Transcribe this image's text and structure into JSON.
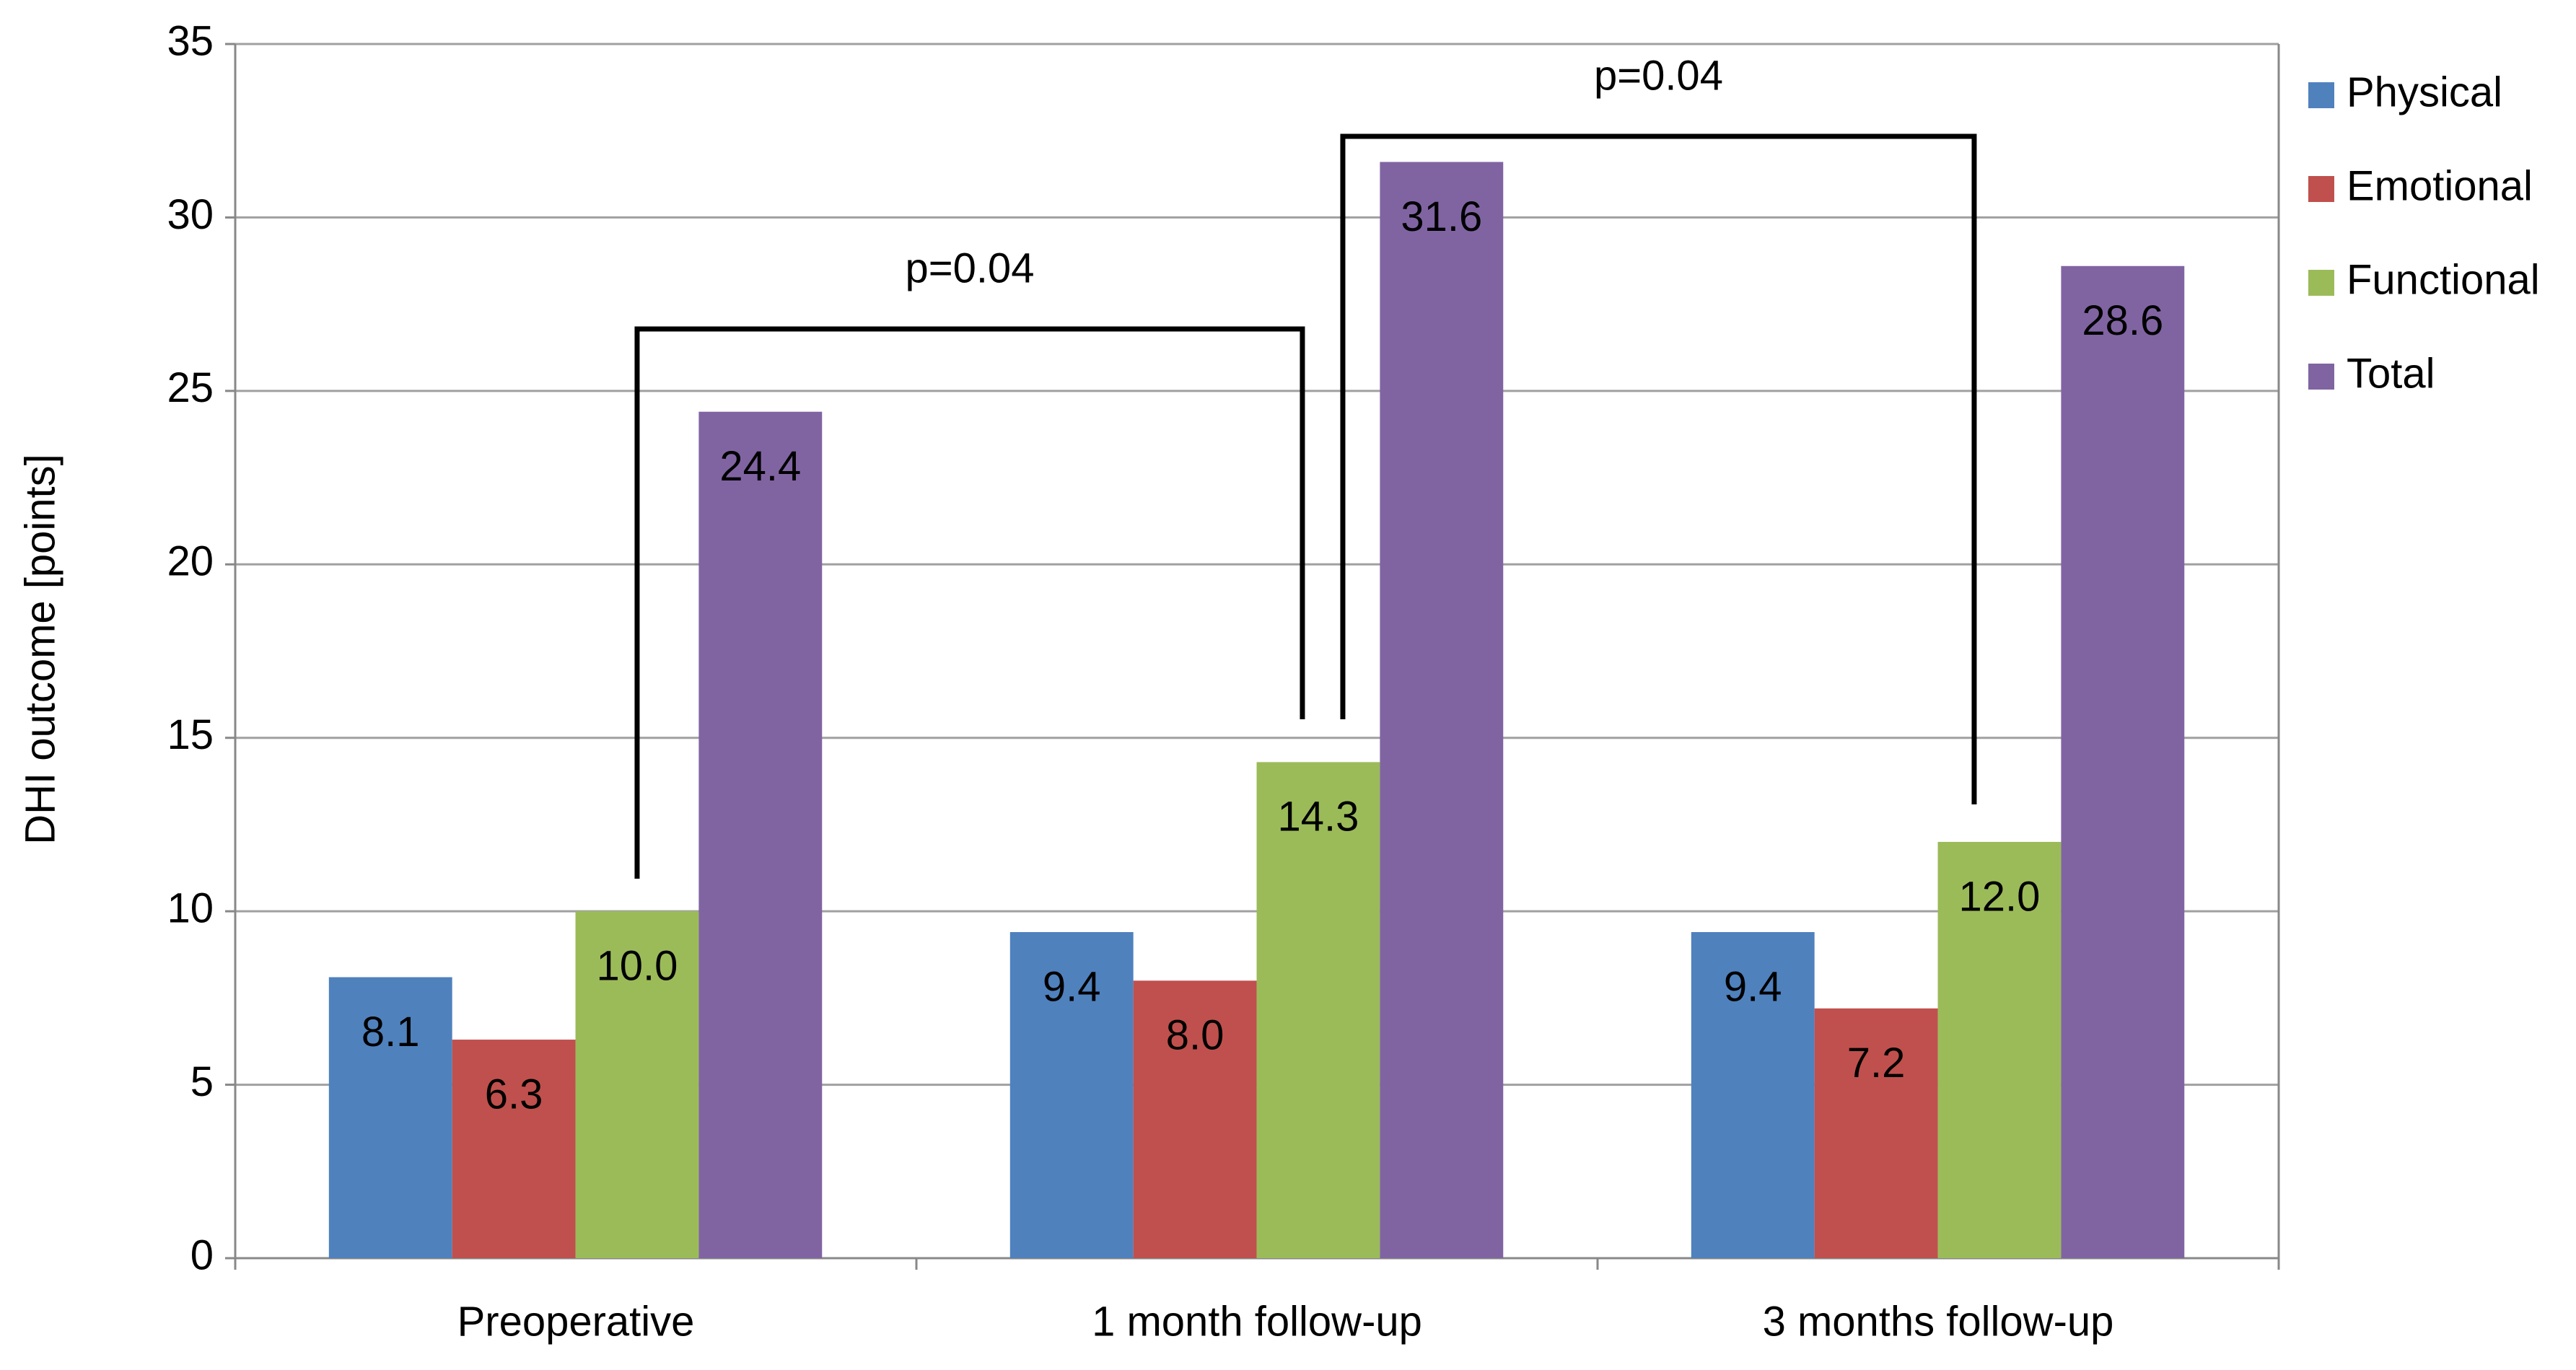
{
  "chart_data": {
    "type": "bar",
    "y_label": "DHI outcome [points]",
    "categories": [
      "Preoperative",
      "1 month follow-up",
      "3 months follow-up"
    ],
    "series": [
      {
        "name": "Physical",
        "color": "#4f81bd",
        "values": [
          8.1,
          9.4,
          9.4
        ]
      },
      {
        "name": "Emotional",
        "color": "#c0504d",
        "values": [
          6.3,
          8.0,
          7.2
        ],
        "value_labels": [
          "6.3",
          "8.0",
          "7.2"
        ]
      },
      {
        "name": "Functional",
        "color": "#9bbb59",
        "values": [
          10.0,
          14.3,
          12.0
        ],
        "value_labels": [
          "10.0",
          "14.3",
          "12.0"
        ]
      },
      {
        "name": "Total",
        "color": "#8064a2",
        "values": [
          24.4,
          31.6,
          28.6
        ]
      }
    ],
    "ylim": [
      0,
      35
    ],
    "yticks": [
      0,
      5,
      10,
      15,
      20,
      25,
      30,
      35
    ],
    "grid": true,
    "legend": "right",
    "annotations": [
      {
        "text": "p=0.04"
      },
      {
        "text": "p=0.04"
      }
    ]
  }
}
